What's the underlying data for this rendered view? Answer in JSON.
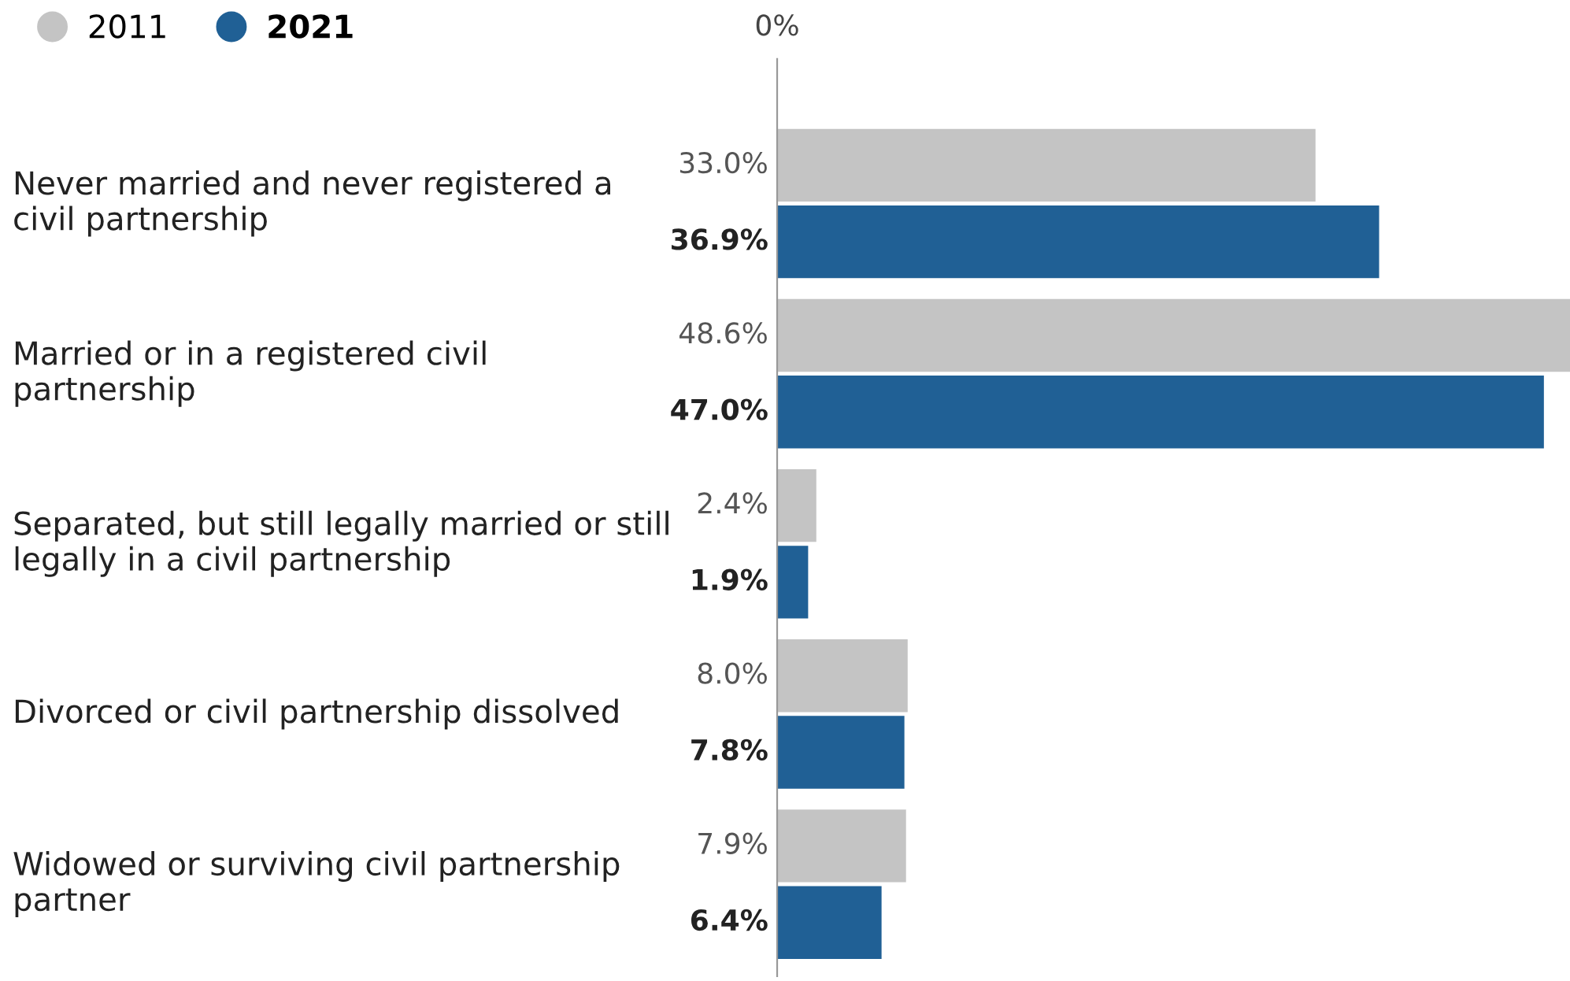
{
  "chart_data": {
    "type": "bar",
    "orientation": "horizontal",
    "categories": [
      "Never married and never registered a civil partnership",
      "Married or in a registered civil partnership",
      "Separated, but still legally married or still legally in a civil partnership",
      "Divorced or civil partnership dissolved",
      "Widowed or surviving civil partnership partner"
    ],
    "series": [
      {
        "name": "2011",
        "color": "#c4c4c4",
        "values": [
          33.0,
          48.6,
          2.4,
          8.0,
          7.9
        ],
        "value_labels": [
          "33.0%",
          "48.6%",
          "2.4%",
          "8.0%",
          "7.9%"
        ]
      },
      {
        "name": "2021",
        "color": "#206095",
        "values": [
          36.9,
          47.0,
          1.9,
          7.8,
          6.4
        ],
        "value_labels": [
          "36.9%",
          "47.0%",
          "1.9%",
          "7.8%",
          "6.4%"
        ]
      }
    ],
    "annotations": [
      "0%"
    ],
    "legend": "top left"
  }
}
